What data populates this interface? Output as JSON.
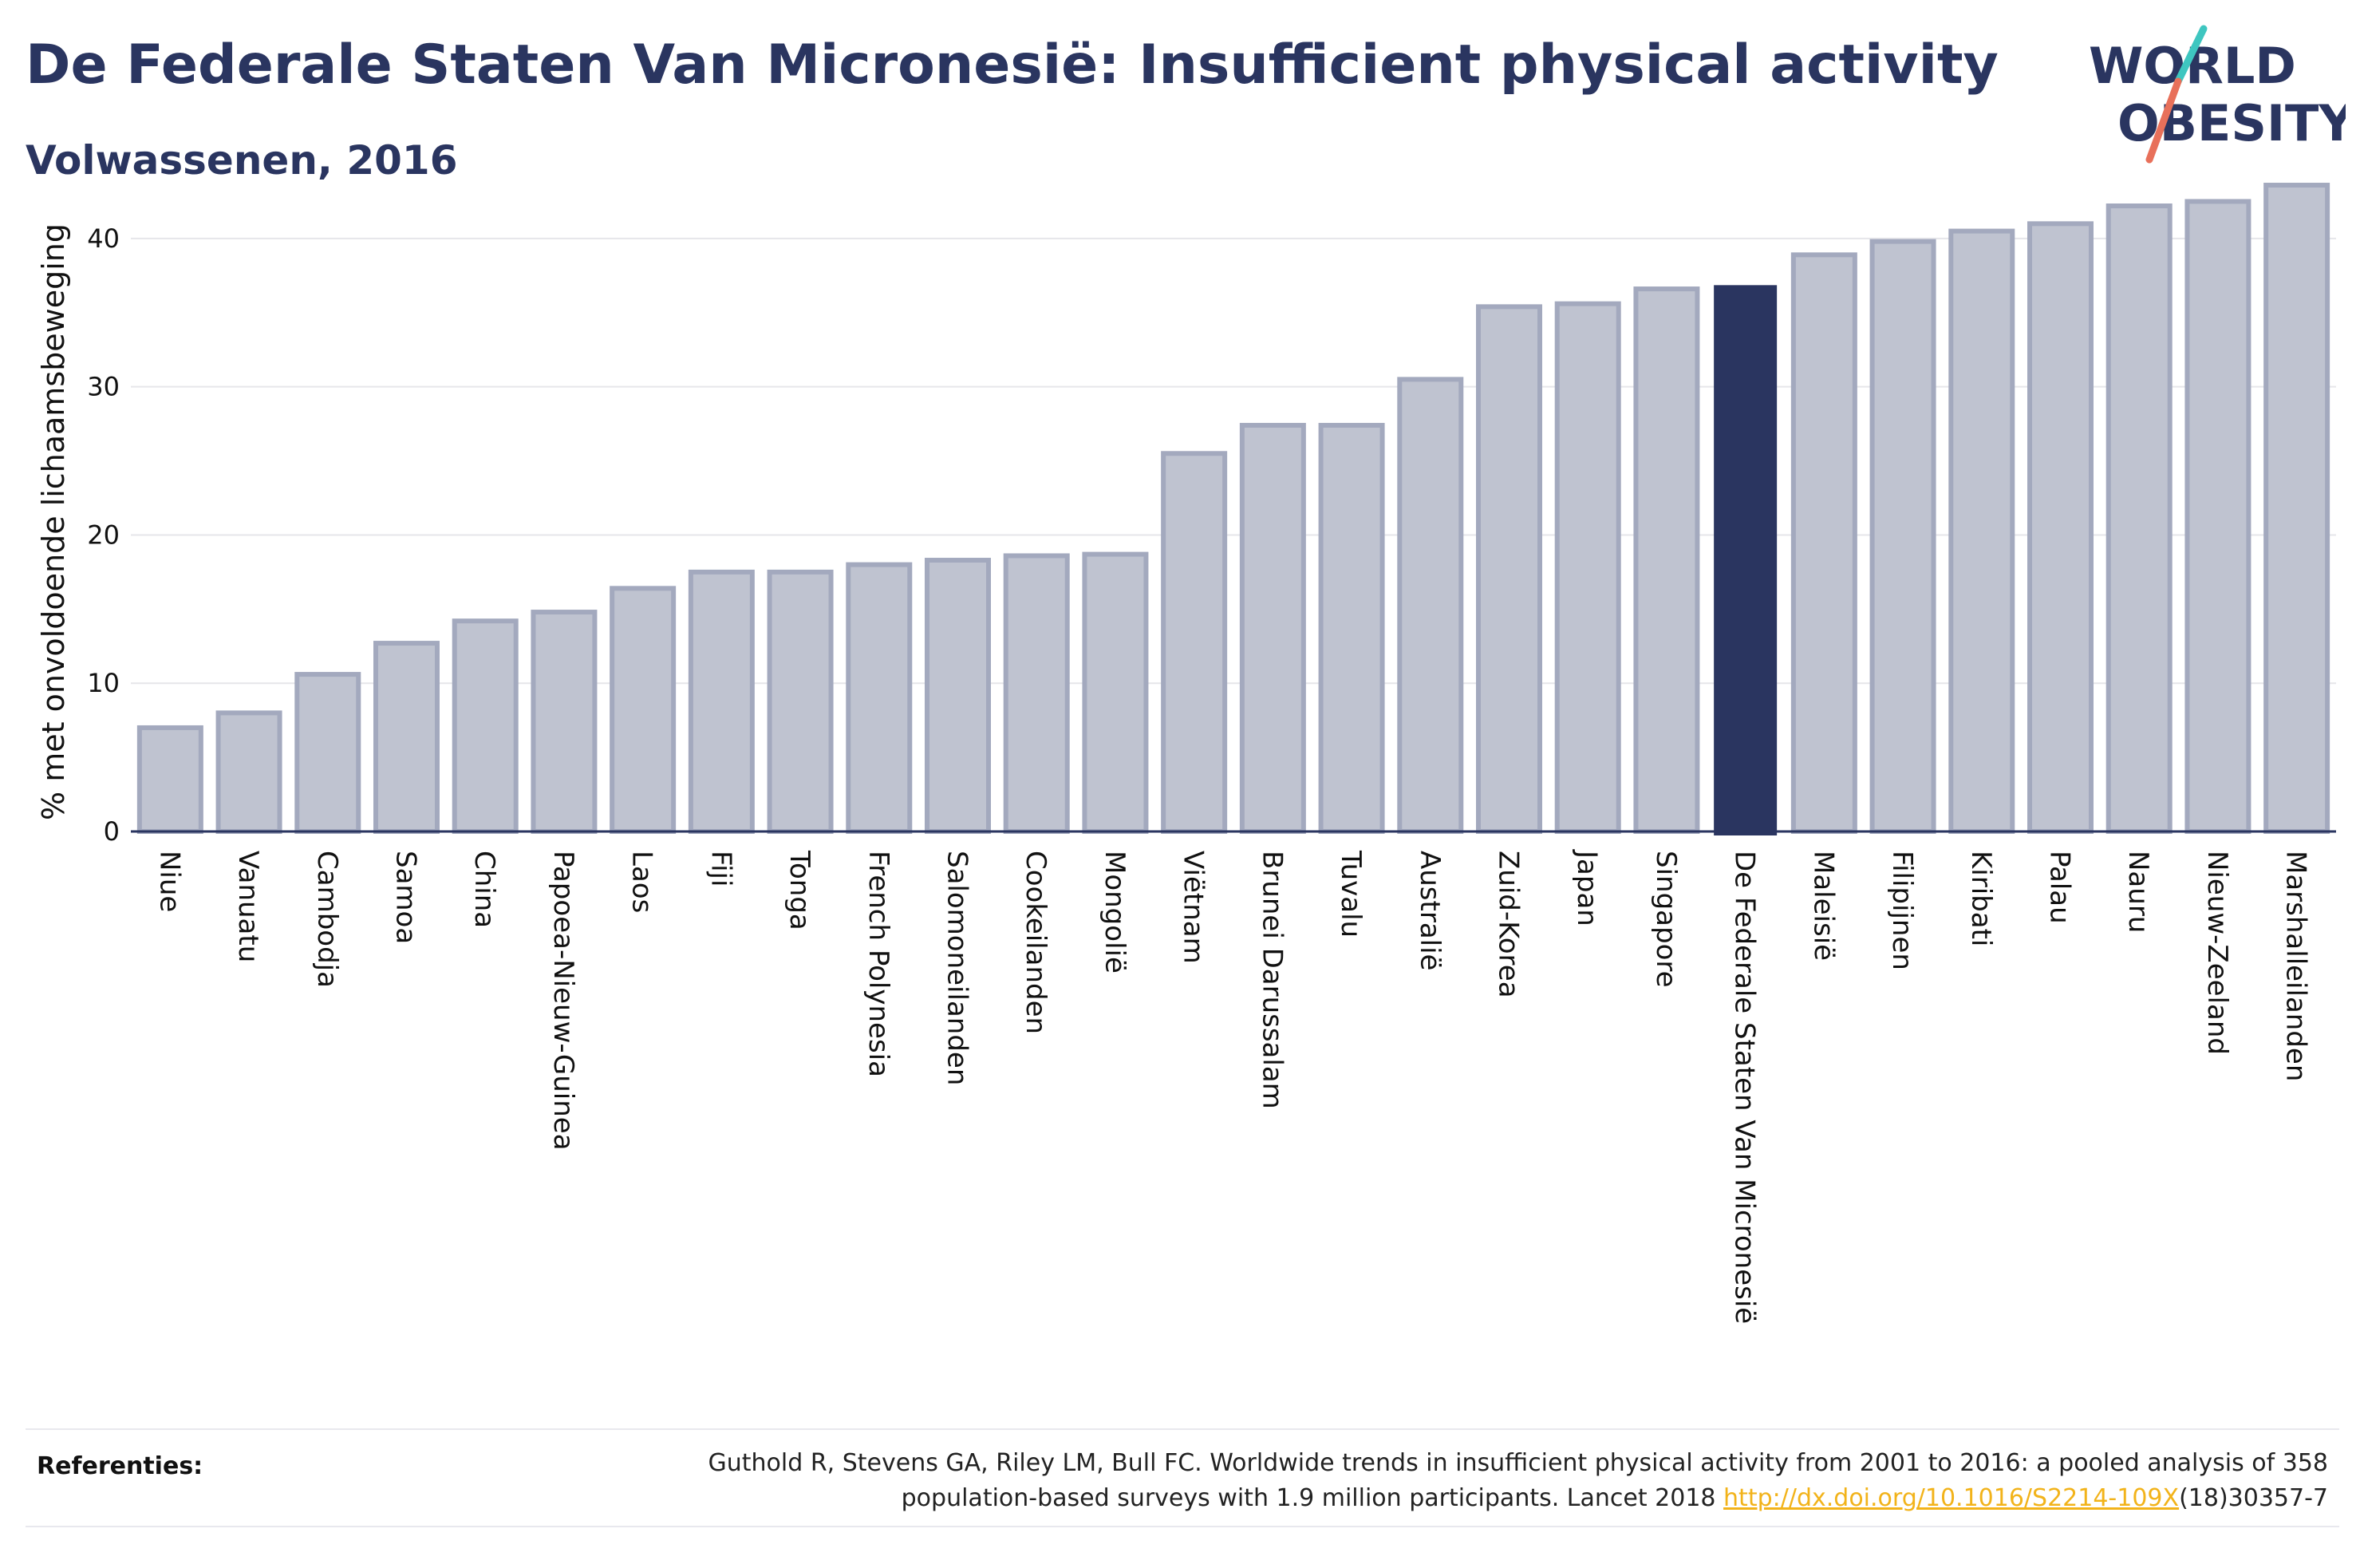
{
  "header": {
    "title": "De Federale Staten Van Micronesië: Insufficient physical activity",
    "subtitle": "Volwassenen, 2016"
  },
  "logo": {
    "line1": "WORLD",
    "line2": "OBESITY",
    "text_color": "#2a3560",
    "slash_colors": [
      "#3ec6c0",
      "#e8705a"
    ]
  },
  "colors": {
    "bar": "#bfc3d0",
    "bar_border": "#a3a9be",
    "highlight": "#2a3560",
    "grid": "#e6e6ea",
    "axis": "#2a3560"
  },
  "chart_data": {
    "type": "bar",
    "title": "",
    "xlabel": "",
    "ylabel": "% met onvoldoende lichaamsbeweging",
    "ylim": [
      0,
      45
    ],
    "yticks": [
      0,
      10,
      20,
      30,
      40
    ],
    "grid": true,
    "highlight": "De Federale Staten Van Micronesië",
    "categories": [
      "Niue",
      "Vanuatu",
      "Cambodja",
      "Samoa",
      "China",
      "Papoea-Nieuw-Guinea",
      "Laos",
      "Fiji",
      "Tonga",
      "French Polynesia",
      "Salomoneilanden",
      "Cookeilanden",
      "Mongolië",
      "Viëtnam",
      "Brunei Darussalam",
      "Tuvalu",
      "Australië",
      "Zuid-Korea",
      "Japan",
      "Singapore",
      "De Federale Staten Van Micronesië",
      "Maleisië",
      "Filipijnen",
      "Kiribati",
      "Palau",
      "Nauru",
      "Nieuw-Zeeland",
      "Marshalleilanden"
    ],
    "values": [
      7.0,
      8.0,
      10.6,
      12.7,
      14.2,
      14.8,
      16.4,
      17.5,
      17.5,
      18.0,
      18.3,
      18.6,
      18.7,
      25.5,
      27.4,
      27.4,
      30.5,
      35.4,
      35.6,
      36.6,
      36.8,
      38.9,
      39.8,
      40.5,
      41.0,
      42.2,
      42.5,
      43.6
    ]
  },
  "references": {
    "label": "Referenties:",
    "text": "Guthold R, Stevens GA, Riley LM, Bull FC. Worldwide trends in insufficient physical activity from 2001 to 2016: a pooled analysis of 358 population-based surveys with 1.9 million participants. Lancet 2018 ",
    "link": "http://dx.doi.org/10.1016/S2214-109X",
    "suffix": "(18)30357-7"
  }
}
